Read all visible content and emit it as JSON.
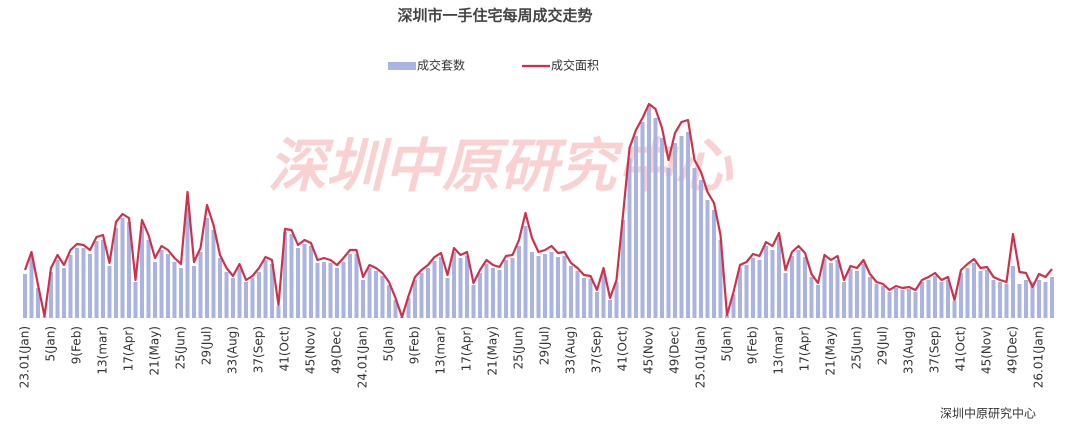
{
  "chart_data": {
    "type": "bar_line",
    "title": "深圳市一手住宅每周成交走势",
    "watermark": "深圳中原研究中心",
    "source": "深圳中原研究中心",
    "categories": [
      "23.01(Jan)",
      null,
      null,
      null,
      "5(Jan)",
      null,
      null,
      null,
      "9(Feb)",
      null,
      null,
      null,
      "13(mar)",
      null,
      null,
      null,
      "17(Apr)",
      null,
      null,
      null,
      "21(May)",
      null,
      null,
      null,
      "25(Jun)",
      null,
      null,
      null,
      "29(Jul)",
      null,
      null,
      null,
      "33(Aug)",
      null,
      null,
      null,
      "37(Sep)",
      null,
      null,
      null,
      "41(Oct)",
      null,
      null,
      null,
      "45(Nov)",
      null,
      null,
      null,
      "49(Dec)",
      null,
      null,
      null,
      "24.01(Jan)",
      null,
      null,
      null,
      "5(Jan)",
      null,
      null,
      null,
      "9(Feb)",
      null,
      null,
      null,
      "13(mar)",
      null,
      null,
      null,
      "17(Apr)",
      null,
      null,
      null,
      "21(May)",
      null,
      null,
      null,
      "25(Jun)",
      null,
      null,
      null,
      "29(Jul)",
      null,
      null,
      null,
      "33(Aug)",
      null,
      null,
      null,
      "37(Sep)",
      null,
      null,
      null,
      "41(Oct)",
      null,
      null,
      null,
      "45(Nov)",
      null,
      null,
      null,
      "49(Dec)",
      null,
      null,
      null,
      "25.01(Jan)",
      null,
      null,
      null,
      "5(Jan)",
      null,
      null,
      null,
      "9(Feb)",
      null,
      null,
      null,
      "13(mar)",
      null,
      null,
      null,
      "17(Apr)",
      null,
      null,
      null,
      "21(May)",
      null,
      null,
      null,
      "25(Jun)",
      null,
      null,
      null,
      "29(Jul)",
      null,
      null,
      null,
      "33(Aug)",
      null,
      null,
      null,
      "37(Sep)",
      null,
      null,
      null,
      "41(Oct)",
      null,
      null,
      null,
      "45(Nov)",
      null,
      null,
      null,
      "49(Dec)",
      null,
      null,
      null,
      "26.01(Jan)",
      null,
      null
    ],
    "series": [
      {
        "name": "成交套数",
        "type": "bar",
        "color": "#aab4e3",
        "values": [
          44,
          62,
          30,
          2,
          46,
          58,
          50,
          63,
          70,
          70,
          64,
          77,
          78,
          52,
          90,
          100,
          96,
          36,
          92,
          78,
          56,
          68,
          64,
          56,
          50,
          110,
          52,
          66,
          100,
          88,
          60,
          46,
          40,
          50,
          36,
          40,
          46,
          58,
          54,
          12,
          86,
          84,
          70,
          74,
          72,
          55,
          56,
          55,
          50,
          56,
          64,
          64,
          38,
          50,
          47,
          42,
          33,
          18,
          1,
          20,
          38,
          45,
          50,
          57,
          61,
          40,
          66,
          60,
          62,
          33,
          45,
          54,
          50,
          48,
          58,
          60,
          72,
          92,
          66,
          62,
          64,
          66,
          61,
          62,
          52,
          47,
          40,
          39,
          26,
          47,
          18,
          36,
          98,
          160,
          182,
          196,
          213,
          200,
          180,
          150,
          175,
          182,
          186,
          150,
          138,
          118,
          108,
          78,
          3,
          24,
          50,
          53,
          60,
          58,
          72,
          68,
          80,
          45,
          62,
          68,
          61,
          41,
          33,
          59,
          55,
          58,
          36,
          49,
          47,
          54,
          41,
          34,
          32,
          26,
          30,
          28,
          29,
          26,
          36,
          38,
          42,
          36,
          38,
          17,
          45,
          50,
          55,
          47,
          48,
          38,
          36,
          34,
          52,
          34,
          38,
          36,
          38,
          36,
          41
        ]
      },
      {
        "name": "成交面积",
        "type": "line",
        "color": "#d0314a",
        "values": [
          48,
          66,
          33,
          2,
          50,
          63,
          53,
          68,
          74,
          73,
          68,
          81,
          83,
          55,
          96,
          104,
          100,
          38,
          98,
          83,
          60,
          72,
          68,
          60,
          54,
          126,
          56,
          70,
          113,
          93,
          63,
          50,
          42,
          54,
          38,
          42,
          50,
          61,
          58,
          13,
          89,
          88,
          73,
          78,
          75,
          58,
          60,
          58,
          53,
          60,
          68,
          68,
          41,
          53,
          50,
          45,
          36,
          20,
          1,
          22,
          41,
          48,
          53,
          61,
          65,
          43,
          70,
          63,
          66,
          35,
          48,
          58,
          53,
          51,
          62,
          63,
          78,
          105,
          80,
          66,
          68,
          72,
          65,
          66,
          55,
          50,
          43,
          42,
          28,
          50,
          20,
          38,
          103,
          170,
          188,
          200,
          214,
          209,
          190,
          158,
          185,
          196,
          198,
          158,
          146,
          126,
          115,
          83,
          3,
          26,
          53,
          56,
          64,
          62,
          76,
          72,
          85,
          48,
          66,
          72,
          65,
          44,
          35,
          63,
          58,
          62,
          38,
          52,
          50,
          58,
          44,
          36,
          34,
          28,
          32,
          30,
          31,
          28,
          38,
          41,
          45,
          38,
          41,
          18,
          48,
          54,
          59,
          50,
          51,
          41,
          38,
          36,
          84,
          46,
          45,
          31,
          44,
          41,
          49
        ]
      }
    ],
    "ylim": [
      0,
      220
    ]
  }
}
